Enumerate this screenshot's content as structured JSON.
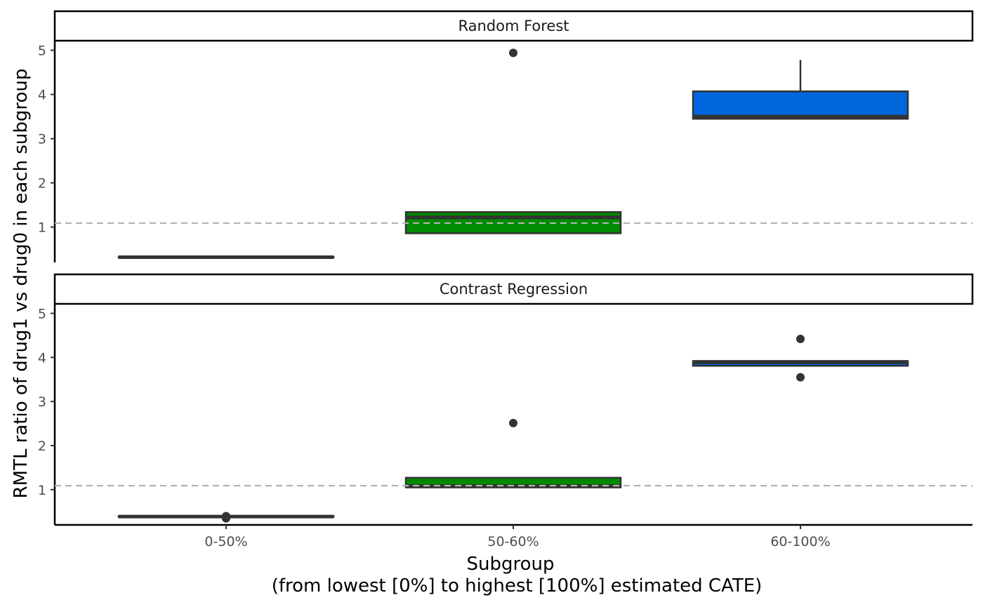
{
  "chart_data": {
    "type": "box",
    "facets": [
      "Random Forest",
      "Contrast Regression"
    ],
    "categories": [
      "0-50%",
      "50-60%",
      "60-100%"
    ],
    "xlabel": "Subgroup",
    "xlabel_sub": "(from lowest [0%] to highest [100%] estimated CATE)",
    "ylabel": "RMTL ratio of drug1 vs drug0 in each subgroup",
    "ylim": [
      0.2,
      5.2
    ],
    "yticks": [
      1,
      2,
      3,
      4,
      5
    ],
    "reference_line": 1.09,
    "grid": false,
    "legend": "none",
    "colors": {
      "0-50%": "#8B0000",
      "50-60%": "#008B00",
      "60-100%": "#0066DD",
      "box_line": "#333333",
      "reference": "#B3B3B3"
    },
    "panels": [
      {
        "name": "Random Forest",
        "boxes": [
          {
            "category": "0-50%",
            "min": 0.31,
            "q1": 0.31,
            "median": 0.32,
            "q3": 0.33,
            "max": 0.33,
            "outliers": []
          },
          {
            "category": "50-60%",
            "min": 0.86,
            "q1": 0.86,
            "median": 1.22,
            "q3": 1.34,
            "max": 1.34,
            "outliers": [
              4.94
            ]
          },
          {
            "category": "60-100%",
            "min": 3.45,
            "q1": 3.45,
            "median": 3.5,
            "q3": 4.07,
            "max": 4.78,
            "outliers": []
          }
        ]
      },
      {
        "name": "Contrast Regression",
        "boxes": [
          {
            "category": "0-50%",
            "min": 0.38,
            "q1": 0.38,
            "median": 0.39,
            "q3": 0.4,
            "max": 0.4,
            "outliers": [
              0.35,
              0.4
            ]
          },
          {
            "category": "50-60%",
            "min": 1.05,
            "q1": 1.05,
            "median": 1.08,
            "q3": 1.27,
            "max": 1.27,
            "outliers": [
              2.51
            ]
          },
          {
            "category": "60-100%",
            "min": 3.81,
            "q1": 3.81,
            "median": 3.89,
            "q3": 3.92,
            "max": 3.92,
            "outliers": [
              4.42,
              3.55
            ]
          }
        ]
      }
    ]
  }
}
